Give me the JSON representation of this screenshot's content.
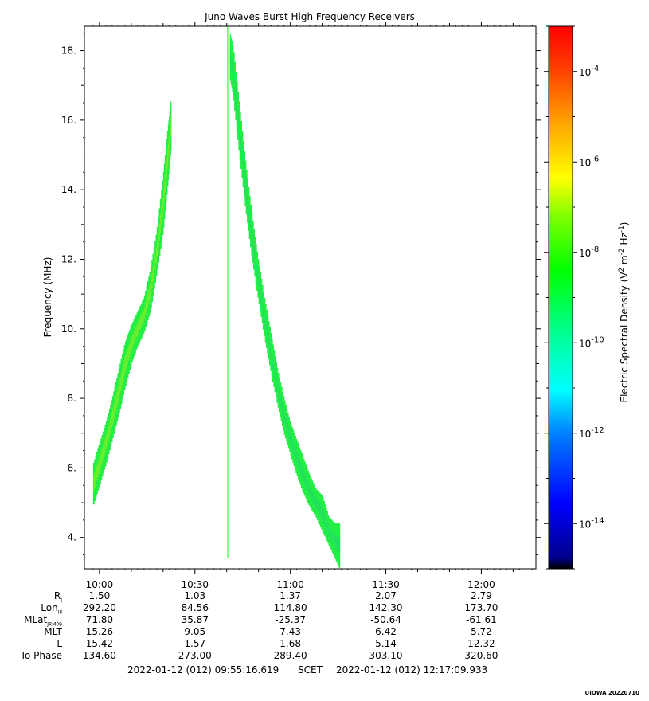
{
  "chart_data": {
    "type": "heatmap",
    "title": "Juno Waves Burst High Frequency Receivers",
    "ylabel": "Frequency (MHz)",
    "ylim": [
      3.1,
      18.7
    ],
    "yticks": [
      "4.",
      "6.",
      "8.",
      "10.",
      "12.",
      "14.",
      "16.",
      "18."
    ],
    "xlim_minutes_from_1000": [
      -4.73,
      137.16
    ],
    "xticks": [
      "10:00",
      "10:30",
      "11:00",
      "11:30",
      "12:00"
    ],
    "colorbar": {
      "label": "Electric Spectral Density (V2 m-2 Hz-1)",
      "scale": "log",
      "range": [
        1e-15,
        0.001
      ],
      "tick_labels": [
        {
          "base": "10",
          "exp": "-4"
        },
        {
          "base": "10",
          "exp": "-6"
        },
        {
          "base": "10",
          "exp": "-8"
        },
        {
          "base": "10",
          "exp": "-10"
        },
        {
          "base": "10",
          "exp": "-12"
        },
        {
          "base": "10",
          "exp": "-14"
        }
      ],
      "colors": [
        "#000000",
        "#00008b",
        "#0000ff",
        "#0080ff",
        "#00ffff",
        "#00ff80",
        "#00ff00",
        "#80ff00",
        "#ffff00",
        "#ffa500",
        "#ff4000",
        "#ff0000"
      ]
    },
    "series": [
      {
        "kind": "emission-band",
        "values": [
          {
            "t": -2.0,
            "f_low": 4.9,
            "f_high": 6.1
          },
          {
            "t": 0.0,
            "f_low": 5.5,
            "f_high": 6.7
          },
          {
            "t": 2.0,
            "f_low": 6.1,
            "f_high": 7.3
          },
          {
            "t": 4.0,
            "f_low": 6.8,
            "f_high": 8.0
          },
          {
            "t": 6.0,
            "f_low": 7.5,
            "f_high": 8.8
          },
          {
            "t": 8.0,
            "f_low": 8.3,
            "f_high": 9.6
          },
          {
            "t": 10.0,
            "f_low": 9.0,
            "f_high": 10.1
          },
          {
            "t": 12.0,
            "f_low": 9.5,
            "f_high": 10.5
          },
          {
            "t": 14.0,
            "f_low": 9.9,
            "f_high": 10.9
          },
          {
            "t": 16.0,
            "f_low": 10.5,
            "f_high": 11.7
          },
          {
            "t": 18.0,
            "f_low": 11.6,
            "f_high": 12.8
          },
          {
            "t": 20.0,
            "f_low": 12.8,
            "f_high": 14.4
          },
          {
            "t": 21.5,
            "f_low": 14.2,
            "f_high": 15.8
          },
          {
            "t": 22.5,
            "f_low": 15.2,
            "f_high": 16.6
          }
        ]
      },
      {
        "kind": "emission-band",
        "values": [
          {
            "t": 41.0,
            "f_low": 17.2,
            "f_high": 18.5
          },
          {
            "t": 42.0,
            "f_low": 16.7,
            "f_high": 18.1
          },
          {
            "t": 44.0,
            "f_low": 15.0,
            "f_high": 16.4
          },
          {
            "t": 46.0,
            "f_low": 13.4,
            "f_high": 14.7
          },
          {
            "t": 48.0,
            "f_low": 12.0,
            "f_high": 13.2
          },
          {
            "t": 50.0,
            "f_low": 10.8,
            "f_high": 11.9
          },
          {
            "t": 52.0,
            "f_low": 9.7,
            "f_high": 10.8
          },
          {
            "t": 54.0,
            "f_low": 8.7,
            "f_high": 9.8
          },
          {
            "t": 56.0,
            "f_low": 7.8,
            "f_high": 8.8
          },
          {
            "t": 58.0,
            "f_low": 7.0,
            "f_high": 8.0
          },
          {
            "t": 60.0,
            "f_low": 6.4,
            "f_high": 7.3
          },
          {
            "t": 62.0,
            "f_low": 5.8,
            "f_high": 6.8
          },
          {
            "t": 64.0,
            "f_low": 5.3,
            "f_high": 6.3
          },
          {
            "t": 66.0,
            "f_low": 4.9,
            "f_high": 5.8
          },
          {
            "t": 68.0,
            "f_low": 4.6,
            "f_high": 5.4
          },
          {
            "t": 70.0,
            "f_low": 4.2,
            "f_high": 5.2
          },
          {
            "t": 72.0,
            "f_low": 3.8,
            "f_high": 4.6
          },
          {
            "t": 74.0,
            "f_low": 3.4,
            "f_high": 4.4
          },
          {
            "t": 75.5,
            "f_low": 3.1,
            "f_high": 4.4
          }
        ]
      },
      {
        "kind": "vertical-line",
        "values": [
          {
            "t": 40.3,
            "f_low": 3.4,
            "f_high": 18.7
          }
        ]
      }
    ]
  },
  "ephemeris": {
    "labels": [
      "R",
      "Lon",
      "MLat",
      "MLT",
      "L",
      "Io Phase"
    ],
    "label_subscripts": [
      "J",
      "III",
      "JRM09",
      "",
      "",
      ""
    ],
    "columns": [
      [
        "1.50",
        "292.20",
        "71.80",
        "15.26",
        "15.42",
        "134.60"
      ],
      [
        "1.03",
        "84.56",
        "35.87",
        "9.05",
        "1.57",
        "273.00"
      ],
      [
        "1.37",
        "114.80",
        "-25.37",
        "7.43",
        "1.68",
        "289.40"
      ],
      [
        "2.07",
        "142.30",
        "-50.64",
        "6.42",
        "5.14",
        "303.10"
      ],
      [
        "2.79",
        "173.70",
        "-61.61",
        "5.72",
        "12.32",
        "320.60"
      ]
    ]
  },
  "footer": {
    "start": "2022-01-12 (012) 09:55:16.619",
    "scet": "SCET",
    "end": "2022-01-12 (012) 12:17:09.933"
  },
  "credit": "UIOWA 20220710"
}
